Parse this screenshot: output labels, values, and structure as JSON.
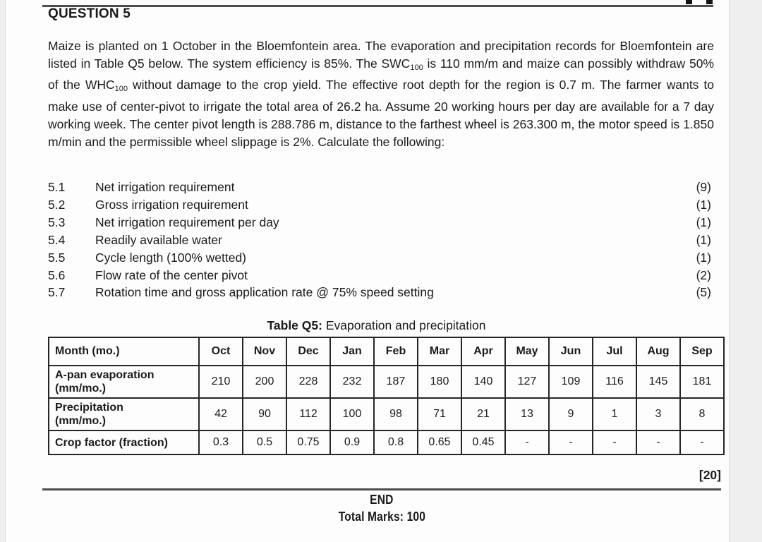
{
  "header": {
    "title": "QUESTION 5"
  },
  "paragraph": {
    "parts": [
      {
        "text": "Maize is planted on 1 October in the Bloemfontein area.  The evaporation and precipitation records for Bloemfontein are listed in Table Q5 below.  The system efficiency is 85%.  The SWC"
      },
      {
        "sub": "100"
      },
      {
        "text": " is 110 mm/m and maize can possibly withdraw 50% of the WHC"
      },
      {
        "sub": "100"
      },
      {
        "text": " without damage to the crop yield.  The effective root depth for the region is 0.7 m.  The farmer wants to make use of center-pivot to irrigate the total area of 26.2 ha.  Assume 20 working hours per day are available for a 7 day working week.  The center pivot length is 288.786 m, distance to the farthest wheel is 263.300 m, the motor speed is 1.850 m/min and the permissible wheel slippage is 2%.  Calculate the following:"
      }
    ]
  },
  "subquestions": [
    {
      "num": "5.1",
      "text": "Net irrigation requirement",
      "marks": "(9)"
    },
    {
      "num": "5.2",
      "text": "Gross irrigation requirement",
      "marks": "(1)"
    },
    {
      "num": "5.3",
      "text": "Net irrigation requirement per day",
      "marks": "(1)"
    },
    {
      "num": "5.4",
      "text": "Readily available water",
      "marks": "(1)"
    },
    {
      "num": "5.5",
      "text": "Cycle length (100% wetted)",
      "marks": "(1)"
    },
    {
      "num": "5.6",
      "text": "Flow rate of the center pivot",
      "marks": "(2)"
    },
    {
      "num": "5.7",
      "text": "Rotation time and gross application rate @ 75% speed setting",
      "marks": "(5)"
    }
  ],
  "table": {
    "caption_bold": "Table Q5:",
    "caption_rest": " Evaporation and precipitation",
    "corner_label": "Month (mo.)",
    "months": [
      "Oct",
      "Nov",
      "Dec",
      "Jan",
      "Feb",
      "Mar",
      "Apr",
      "May",
      "Jun",
      "Jul",
      "Aug",
      "Sep"
    ],
    "rows": [
      {
        "label_lines": [
          "A-pan evaporation",
          "(mm/mo.)"
        ],
        "values": [
          "210",
          "200",
          "228",
          "232",
          "187",
          "180",
          "140",
          "127",
          "109",
          "116",
          "145",
          "181"
        ]
      },
      {
        "label_lines": [
          "Precipitation",
          "(mm/mo.)"
        ],
        "values": [
          "42",
          "90",
          "112",
          "100",
          "98",
          "71",
          "21",
          "13",
          "9",
          "1",
          "3",
          "8"
        ]
      },
      {
        "label_lines": [
          "Crop factor (fraction)"
        ],
        "values": [
          "0.3",
          "0.5",
          "0.75",
          "0.9",
          "0.8",
          "0.65",
          "0.45",
          "-",
          "-",
          "-",
          "-",
          "-"
        ]
      }
    ]
  },
  "footer": {
    "question_total": "[20]",
    "end_label": "END",
    "total_marks": "Total Marks: 100"
  },
  "colors": {
    "page_background": "#fdfdfd",
    "margin_gray": "#efefef",
    "rule_gray": "#4d4d4d",
    "text": "#1b1b1b",
    "table_border": "#262626"
  }
}
